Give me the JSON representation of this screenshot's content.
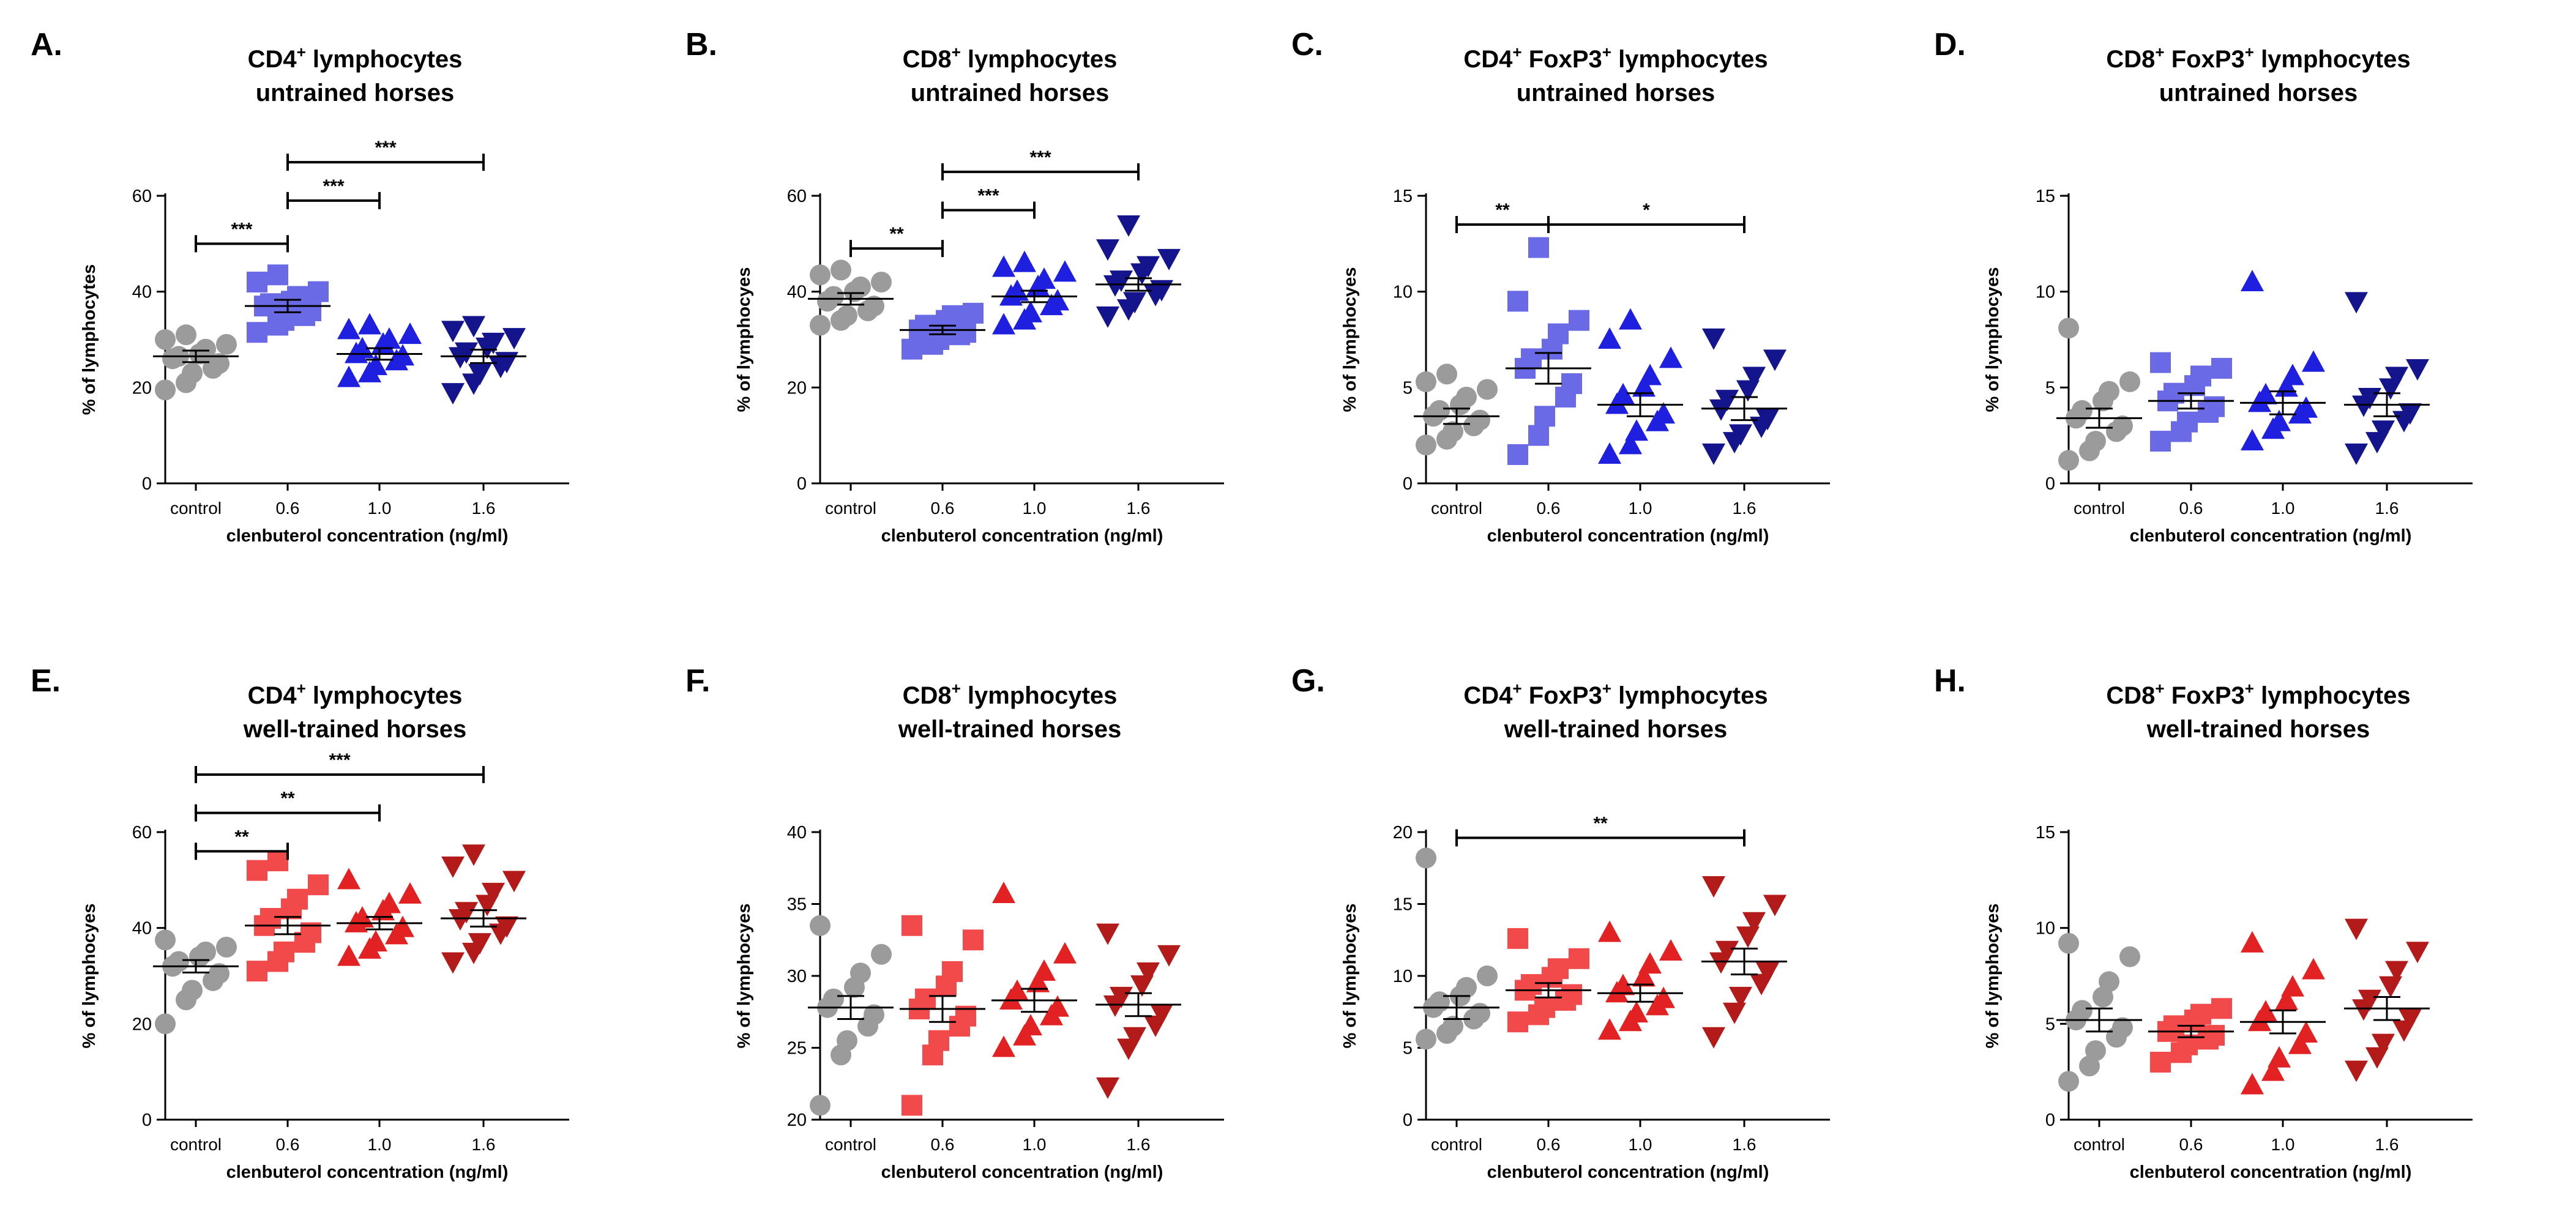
{
  "colors": {
    "control": "#9b9b9b",
    "untrained_0_6": "#6a6ae6",
    "untrained_1_0": "#1f1fe0",
    "untrained_1_6": "#14148c",
    "trained_0_6": "#f24a4a",
    "trained_1_0": "#e22222",
    "trained_1_6": "#b31b1b"
  },
  "chart_data": [
    {
      "id": "A",
      "panel_label": "A.",
      "type": "scatter",
      "title_line1": {
        "pre": "CD4",
        "sup": "+",
        "post": " lymphocytes"
      },
      "title_line2": "untrained horses",
      "ylabel": "% of lymphocytes",
      "xlabel": "clenbuterol concentration (ng/ml)",
      "ylim": [
        0,
        60
      ],
      "yticks": [
        0,
        20,
        40,
        60
      ],
      "categories": [
        "control",
        "0.6",
        "1.0",
        "1.6"
      ],
      "series": [
        {
          "marker": "circle",
          "color": "#9b9b9b",
          "mean": 26.5,
          "sem": 1.2,
          "values": [
            19.5,
            21,
            23,
            24,
            25,
            26,
            26.5,
            27,
            28,
            29,
            30,
            31
          ]
        },
        {
          "marker": "square",
          "color": "#6a6ae6",
          "mean": 37,
          "sem": 1.3,
          "values": [
            31.5,
            33,
            34,
            35,
            36,
            37,
            37.5,
            38,
            39,
            40,
            42,
            43.5
          ]
        },
        {
          "marker": "triangle-up",
          "color": "#1f1fe0",
          "mean": 27,
          "sem": 1.2,
          "values": [
            22,
            23,
            24.5,
            25.5,
            26.5,
            27,
            28,
            29,
            30,
            31,
            32,
            33
          ]
        },
        {
          "marker": "triangle-down",
          "color": "#14148c",
          "mean": 26.5,
          "sem": 1.4,
          "values": [
            19,
            21,
            23,
            24.5,
            25.5,
            26.5,
            27.5,
            28.5,
            29.5,
            30.5,
            32,
            33
          ]
        }
      ],
      "significance": [
        {
          "from": 0,
          "to": 1,
          "level": 50,
          "label": "***"
        },
        {
          "from": 1,
          "to": 2,
          "level": 59,
          "label": "***"
        },
        {
          "from": 1,
          "to": 3,
          "level": 67,
          "label": "***"
        }
      ]
    },
    {
      "id": "B",
      "panel_label": "B.",
      "type": "scatter",
      "title_line1": {
        "pre": "CD8",
        "sup": "+",
        "post": " lymphocytes"
      },
      "title_line2": "untrained horses",
      "ylabel": "% of lymphocyes",
      "xlabel": "clenbuterol concentration (ng/ml)",
      "ylim": [
        0,
        60
      ],
      "yticks": [
        0,
        20,
        40,
        60
      ],
      "categories": [
        "control",
        "0.6",
        "1.0",
        "1.6"
      ],
      "series": [
        {
          "marker": "circle",
          "color": "#9b9b9b",
          "mean": 38.5,
          "sem": 1.2,
          "values": [
            33,
            34,
            35,
            36,
            37,
            38,
            39,
            40,
            41,
            42,
            43.5,
            44.5
          ]
        },
        {
          "marker": "square",
          "color": "#6a6ae6",
          "mean": 32,
          "sem": 0.9,
          "values": [
            28,
            29,
            30,
            31,
            31.5,
            32,
            33,
            34,
            35,
            35.5
          ]
        },
        {
          "marker": "triangle-up",
          "color": "#1f1fe0",
          "mean": 39,
          "sem": 1.2,
          "values": [
            33,
            34,
            35.5,
            37,
            38,
            39,
            40,
            41,
            42.5,
            44,
            45,
            46
          ]
        },
        {
          "marker": "triangle-down",
          "color": "#14148c",
          "mean": 41.5,
          "sem": 1.3,
          "values": [
            35,
            36.5,
            38,
            39.5,
            40.5,
            41.5,
            42.5,
            44,
            45.5,
            47,
            49,
            54
          ]
        }
      ],
      "significance": [
        {
          "from": 0,
          "to": 1,
          "level": 49,
          "label": "**"
        },
        {
          "from": 1,
          "to": 2,
          "level": 57,
          "label": "***"
        },
        {
          "from": 1,
          "to": 3,
          "level": 65,
          "label": "***"
        }
      ]
    },
    {
      "id": "C",
      "panel_label": "C.",
      "type": "scatter",
      "title_line1": {
        "pre": "CD4",
        "sup": "+",
        "post": " FoxP3",
        "sup2": "+",
        "post2": " lymphocytes"
      },
      "title_line2": "untrained horses",
      "ylabel": "% of lymphocyes",
      "xlabel": "clenbuterol concentration (ng/ml)",
      "ylim": [
        0,
        15
      ],
      "yticks": [
        0,
        5,
        10,
        15
      ],
      "categories": [
        "control",
        "0.6",
        "1.0",
        "1.6"
      ],
      "series": [
        {
          "marker": "circle",
          "color": "#9b9b9b",
          "mean": 3.5,
          "sem": 0.4,
          "values": [
            2,
            2.3,
            2.7,
            3,
            3.3,
            3.5,
            3.8,
            4.1,
            4.5,
            4.9,
            5.3,
            5.7
          ]
        },
        {
          "marker": "square",
          "color": "#6a6ae6",
          "mean": 6,
          "sem": 0.8,
          "values": [
            1.5,
            2.5,
            3.5,
            4.5,
            5.2,
            6,
            6.5,
            7,
            7.8,
            8.5,
            9.5,
            12.3
          ]
        },
        {
          "marker": "triangle-up",
          "color": "#1f1fe0",
          "mean": 4.1,
          "sem": 0.6,
          "values": [
            1.5,
            2,
            2.7,
            3.2,
            3.6,
            4.1,
            4.6,
            5,
            5.6,
            6.5,
            7.5,
            8.5
          ]
        },
        {
          "marker": "triangle-down",
          "color": "#14148c",
          "mean": 3.9,
          "sem": 0.6,
          "values": [
            1.6,
            2.2,
            2.6,
            3,
            3.4,
            3.9,
            4.4,
            4.9,
            5.6,
            6.5,
            7.6
          ]
        }
      ],
      "significance": [
        {
          "from": 0,
          "to": 1,
          "level": 13.5,
          "label": "**"
        },
        {
          "from": 1,
          "to": 3,
          "level": 13.5,
          "label": "*"
        }
      ]
    },
    {
      "id": "D",
      "panel_label": "D.",
      "type": "scatter",
      "title_line1": {
        "pre": "CD8",
        "sup": "+",
        "post": " FoxP3",
        "sup2": "+",
        "post2": " lymphocytes"
      },
      "title_line2": "untrained horses",
      "ylabel": "% of lymphocyes",
      "xlabel": "clenbuterol concentration (ng/ml)",
      "ylim": [
        0,
        15
      ],
      "yticks": [
        0,
        5,
        10,
        15
      ],
      "categories": [
        "control",
        "0.6",
        "1.0",
        "1.6"
      ],
      "series": [
        {
          "marker": "circle",
          "color": "#9b9b9b",
          "mean": 3.4,
          "sem": 0.5,
          "values": [
            1.2,
            1.7,
            2.2,
            2.7,
            3,
            3.4,
            3.8,
            4.3,
            4.8,
            5.3,
            8.1
          ]
        },
        {
          "marker": "square",
          "color": "#6a6ae6",
          "mean": 4.3,
          "sem": 0.4,
          "values": [
            2.2,
            2.7,
            3.2,
            3.7,
            4,
            4.3,
            4.7,
            5.1,
            5.6,
            6,
            6.3
          ]
        },
        {
          "marker": "triangle-up",
          "color": "#1f1fe0",
          "mean": 4.2,
          "sem": 0.6,
          "values": [
            2.2,
            2.8,
            3.2,
            3.6,
            3.9,
            4.2,
            4.6,
            5,
            5.6,
            6.3,
            10.5
          ]
        },
        {
          "marker": "triangle-down",
          "color": "#14148c",
          "mean": 4.1,
          "sem": 0.6,
          "values": [
            1.6,
            2.2,
            2.8,
            3.3,
            3.7,
            4.1,
            4.5,
            5,
            5.6,
            6,
            9.5
          ]
        }
      ],
      "significance": []
    },
    {
      "id": "E",
      "panel_label": "E.",
      "type": "scatter",
      "title_line1": {
        "pre": "CD4",
        "sup": "+",
        "post": " lymphocytes"
      },
      "title_line2": "well-trained horses",
      "ylabel": "% of lymphocyes",
      "xlabel": "clenbuterol concentration (ng/ml)",
      "ylim": [
        0,
        60
      ],
      "yticks": [
        0,
        20,
        40,
        60
      ],
      "categories": [
        "control",
        "0.6",
        "1.0",
        "1.6"
      ],
      "series": [
        {
          "marker": "circle",
          "color": "#9b9b9b",
          "mean": 32,
          "sem": 1.3,
          "values": [
            20,
            25,
            27,
            29,
            30.5,
            32,
            33,
            34,
            35,
            36,
            37.5
          ]
        },
        {
          "marker": "square",
          "color": "#f24a4a",
          "mean": 40.5,
          "sem": 1.8,
          "values": [
            31,
            33,
            35,
            37,
            39,
            40.5,
            42,
            44,
            46,
            49,
            52,
            54
          ]
        },
        {
          "marker": "triangle-up",
          "color": "#e22222",
          "mean": 41,
          "sem": 1.3,
          "values": [
            34,
            35.5,
            37,
            38.5,
            40,
            41,
            42,
            43.5,
            45,
            47,
            50
          ]
        },
        {
          "marker": "triangle-down",
          "color": "#b31b1b",
          "mean": 42,
          "sem": 1.7,
          "values": [
            33,
            35,
            37,
            39,
            40.5,
            42,
            43.5,
            45,
            47.5,
            50,
            53,
            55.5
          ]
        }
      ],
      "significance": [
        {
          "from": 0,
          "to": 1,
          "level": 56,
          "label": "**"
        },
        {
          "from": 0,
          "to": 2,
          "level": 64,
          "label": "**"
        },
        {
          "from": 0,
          "to": 3,
          "level": 72,
          "label": "***"
        }
      ]
    },
    {
      "id": "F",
      "panel_label": "F.",
      "type": "scatter",
      "title_line1": {
        "pre": "CD8",
        "sup": "+",
        "post": " lymphocytes"
      },
      "title_line2": "well-trained horses",
      "ylabel": "% of lymphocyes",
      "xlabel": "clenbuterol concentration (ng/ml)",
      "ylim": [
        20,
        40
      ],
      "yticks": [
        20,
        25,
        30,
        35,
        40
      ],
      "categories": [
        "control",
        "0.6",
        "1.0",
        "1.6"
      ],
      "series": [
        {
          "marker": "circle",
          "color": "#9b9b9b",
          "mean": 27.8,
          "sem": 0.8,
          "values": [
            21,
            24.5,
            25.5,
            26.5,
            27.3,
            27.8,
            28.4,
            29.2,
            30.2,
            31.5,
            33.5
          ]
        },
        {
          "marker": "square",
          "color": "#f24a4a",
          "mean": 27.7,
          "sem": 0.9,
          "values": [
            21,
            24.5,
            25.5,
            26.5,
            27.2,
            27.7,
            28.4,
            29.3,
            30.3,
            32.5,
            33.5
          ]
        },
        {
          "marker": "triangle-up",
          "color": "#e22222",
          "mean": 28.3,
          "sem": 0.8,
          "values": [
            25,
            25.8,
            26.5,
            27.2,
            27.8,
            28.3,
            28.9,
            29.5,
            30.3,
            31.5,
            35.7
          ]
        },
        {
          "marker": "triangle-down",
          "color": "#b31b1b",
          "mean": 28,
          "sem": 0.8,
          "values": [
            22.3,
            25,
            25.8,
            26.6,
            27.4,
            28,
            28.6,
            29.4,
            30.3,
            31.5,
            33
          ]
        }
      ],
      "significance": []
    },
    {
      "id": "G",
      "panel_label": "G.",
      "type": "scatter",
      "title_line1": {
        "pre": "CD4",
        "sup": "+",
        "post": " FoxP3",
        "sup2": "+",
        "post2": " lymphocytes"
      },
      "title_line2": "well-trained horses",
      "ylabel": "% of lymphocyes",
      "xlabel": "clenbuterol concentration (ng/ml)",
      "ylim": [
        0,
        20
      ],
      "yticks": [
        0,
        5,
        10,
        15,
        20
      ],
      "categories": [
        "control",
        "0.6",
        "1.0",
        "1.6"
      ],
      "series": [
        {
          "marker": "circle",
          "color": "#9b9b9b",
          "mean": 7.8,
          "sem": 0.8,
          "values": [
            5.6,
            6,
            6.5,
            7,
            7.4,
            7.8,
            8.2,
            8.6,
            9.2,
            10,
            18.2
          ]
        },
        {
          "marker": "square",
          "color": "#f24a4a",
          "mean": 9,
          "sem": 0.5,
          "values": [
            6.8,
            7.3,
            7.8,
            8.3,
            8.7,
            9,
            9.4,
            9.9,
            10.5,
            11.2,
            12.6
          ]
        },
        {
          "marker": "triangle-up",
          "color": "#e22222",
          "mean": 8.8,
          "sem": 0.6,
          "values": [
            6.2,
            6.8,
            7.4,
            7.9,
            8.4,
            8.8,
            9.3,
            9.9,
            10.8,
            11.7,
            13
          ]
        },
        {
          "marker": "triangle-down",
          "color": "#b31b1b",
          "mean": 11,
          "sem": 0.9,
          "values": [
            5.8,
            7.5,
            8.6,
            9.5,
            10.3,
            11,
            11.8,
            12.8,
            13.8,
            15,
            16.3
          ]
        }
      ],
      "significance": [
        {
          "from": 0,
          "to": 3,
          "level": 19.6,
          "label": "**"
        }
      ]
    },
    {
      "id": "H",
      "panel_label": "H.",
      "type": "scatter",
      "title_line1": {
        "pre": "CD8",
        "sup": "+",
        "post": " FoxP3",
        "sup2": "+",
        "post2": " lymphocytes"
      },
      "title_line2": "well-trained horses",
      "ylabel": "% of lymphocyes",
      "xlabel": "clenbuterol concentration (ng/ml)",
      "ylim": [
        0,
        15
      ],
      "yticks": [
        0,
        5,
        10,
        15
      ],
      "categories": [
        "control",
        "0.6",
        "1.0",
        "1.6"
      ],
      "series": [
        {
          "marker": "circle",
          "color": "#9b9b9b",
          "mean": 5.2,
          "sem": 0.6,
          "values": [
            2,
            2.8,
            3.6,
            4.3,
            4.8,
            5.2,
            5.7,
            6.4,
            7.2,
            8.5,
            9.2
          ]
        },
        {
          "marker": "square",
          "color": "#f24a4a",
          "mean": 4.6,
          "sem": 0.3,
          "values": [
            3,
            3.5,
            3.9,
            4.2,
            4.4,
            4.6,
            4.9,
            5.2,
            5.5,
            5.8
          ]
        },
        {
          "marker": "triangle-up",
          "color": "#e22222",
          "mean": 5.1,
          "sem": 0.6,
          "values": [
            1.8,
            2.5,
            3.2,
            3.9,
            4.5,
            5.1,
            5.6,
            6.2,
            6.9,
            7.8,
            9.2
          ]
        },
        {
          "marker": "triangle-down",
          "color": "#b31b1b",
          "mean": 5.8,
          "sem": 0.6,
          "values": [
            2.6,
            3.3,
            4,
            4.7,
            5.3,
            5.8,
            6.3,
            7,
            7.8,
            8.8,
            10
          ]
        }
      ],
      "significance": []
    }
  ]
}
